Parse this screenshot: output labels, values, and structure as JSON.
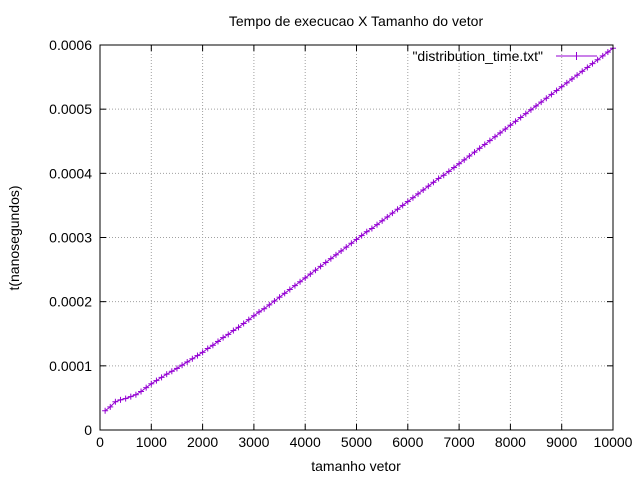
{
  "chart_data": {
    "type": "line",
    "title": "Tempo de execucao X Tamanho do vetor",
    "xlabel": "tamanho vetor",
    "ylabel": "t(nanosegundos)",
    "xlim": [
      0,
      10000
    ],
    "ylim": [
      0,
      0.0006
    ],
    "x_ticks": [
      0,
      1000,
      2000,
      3000,
      4000,
      5000,
      6000,
      7000,
      8000,
      9000,
      10000
    ],
    "x_tick_labels": [
      "0",
      "1000",
      "2000",
      "3000",
      "4000",
      "5000",
      "6000",
      "7000",
      "8000",
      "9000",
      "10000"
    ],
    "y_ticks": [
      0,
      0.0001,
      0.0002,
      0.0003,
      0.0004,
      0.0005,
      0.0006
    ],
    "y_tick_labels": [
      "0",
      "0.0001",
      "0.0002",
      "0.0003",
      "0.0004",
      "0.0005",
      "0.0006"
    ],
    "grid": true,
    "legend_position": "top-right",
    "series": [
      {
        "name": "\"distribution_time.txt\"",
        "color": "#9400d3",
        "marker": "plus",
        "x": [
          100,
          200,
          300,
          400,
          500,
          600,
          700,
          800,
          900,
          1000,
          1100,
          1200,
          1300,
          1400,
          1500,
          1600,
          1700,
          1800,
          1900,
          2000,
          2100,
          2200,
          2300,
          2400,
          2500,
          2600,
          2700,
          2800,
          2900,
          3000,
          3100,
          3200,
          3300,
          3400,
          3500,
          3600,
          3700,
          3800,
          3900,
          4000,
          4100,
          4200,
          4300,
          4400,
          4500,
          4600,
          4700,
          4800,
          4900,
          5000,
          5100,
          5200,
          5300,
          5400,
          5500,
          5600,
          5700,
          5800,
          5900,
          6000,
          6100,
          6200,
          6300,
          6400,
          6500,
          6600,
          6700,
          6800,
          6900,
          7000,
          7100,
          7200,
          7300,
          7400,
          7500,
          7600,
          7700,
          7800,
          7900,
          8000,
          8100,
          8200,
          8300,
          8400,
          8500,
          8600,
          8700,
          8800,
          8900,
          9000,
          9100,
          9200,
          9300,
          9400,
          9500,
          9600,
          9700,
          9800,
          9900,
          10000
        ],
        "y": [
          3e-05,
          3.6e-05,
          4.4e-05,
          4.7e-05,
          4.9e-05,
          5.2e-05,
          5.5e-05,
          6e-05,
          6.6e-05,
          7.2e-05,
          7.7e-05,
          8.2e-05,
          8.7e-05,
          9.15e-05,
          9.6e-05,
          0.000101,
          0.000106,
          0.000111,
          0.000116,
          0.000121,
          0.000127,
          0.000132,
          0.000138,
          0.000144,
          0.000149,
          0.000155,
          0.00016,
          0.000166,
          0.000172,
          0.000178,
          0.000184,
          0.000189,
          0.000195,
          0.000201,
          0.000207,
          0.000213,
          0.000219,
          0.000225,
          0.000231,
          0.000237,
          0.000243,
          0.000249,
          0.000255,
          0.000261,
          0.000267,
          0.000273,
          0.000279,
          0.000285,
          0.000291,
          0.000297,
          0.000303,
          0.000309,
          0.000314,
          0.00032,
          0.000326,
          0.000332,
          0.000338,
          0.000344,
          0.00035,
          0.000356,
          0.000362,
          0.000368,
          0.000374,
          0.00038,
          0.000386,
          0.000392,
          0.000397,
          0.000403,
          0.000409,
          0.000415,
          0.000421,
          0.000427,
          0.000433,
          0.000439,
          0.000445,
          0.000451,
          0.000457,
          0.000463,
          0.000469,
          0.000475,
          0.000481,
          0.000487,
          0.000493,
          0.000499,
          0.000505,
          0.000511,
          0.000517,
          0.000523,
          0.000529,
          0.000535,
          0.000541,
          0.000547,
          0.000553,
          0.000559,
          0.000565,
          0.000571,
          0.000577,
          0.000583,
          0.000589,
          0.000595
        ]
      }
    ]
  }
}
